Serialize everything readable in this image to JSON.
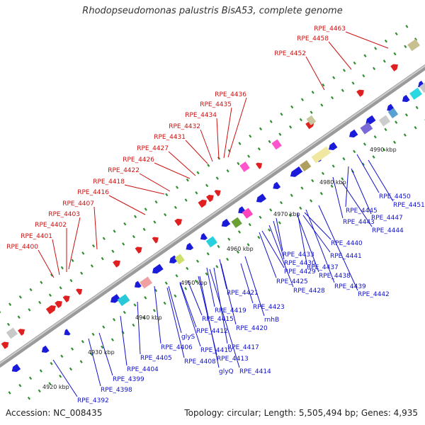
{
  "title": "Rhodopseudomonas palustris BisA53, complete genome",
  "footer": {
    "accession": "Accession: NC_008435",
    "summary": "Topology: circular; Length: 5,505,494 bp; Genes: 4,935"
  },
  "colors": {
    "forward_gene": "#e02020",
    "reverse_gene": "#1a1adb",
    "forward_label": "#cc1111",
    "reverse_label": "#1111cc",
    "backbone": "#8a8a8a",
    "tick": "#2f8f2f"
  },
  "scale_labels": [
    "4920 kbp",
    "4930 kbp",
    "4940 kbp",
    "4950 kbp",
    "4960 kbp",
    "4970 kbp",
    "4980 kbp",
    "4990 kbp"
  ],
  "forward_labels": [
    "RPE_4463",
    "RPE_4458",
    "RPE_4452",
    "RPE_4436",
    "RPE_4435",
    "RPE_4434",
    "RPE_4432",
    "RPE_4431",
    "RPE_4427",
    "RPE_4426",
    "RPE_4422",
    "RPE_4418",
    "RPE_4416",
    "RPE_4407",
    "RPE_4403",
    "RPE_4402",
    "RPE_4401",
    "RPE_4400"
  ],
  "reverse_labels": [
    "RPE_4450",
    "RPE_4451",
    "RPE_4445",
    "RPE_4447",
    "RPE_4443",
    "RPE_4444",
    "RPE_4440",
    "RPE_4441",
    "RPE_4433",
    "RPE_4430",
    "RPE_4437",
    "RPE_4429",
    "RPE_4438",
    "RPE_4425",
    "RPE_4439",
    "RPE_4428",
    "RPE_4442",
    "RPE_4421",
    "RPE_4423",
    "RPE_4419",
    "rnhB",
    "RPE_4415",
    "RPE_4420",
    "RPE_4412",
    "glyS",
    "RPE_4417",
    "RPE_4406",
    "RPE_4410",
    "RPE_4405",
    "RPE_4413",
    "RPE_4408",
    "RPE_4414",
    "glyQ",
    "RPE_4404",
    "RPE_4399",
    "RPE_4398",
    "RPE_4392"
  ]
}
